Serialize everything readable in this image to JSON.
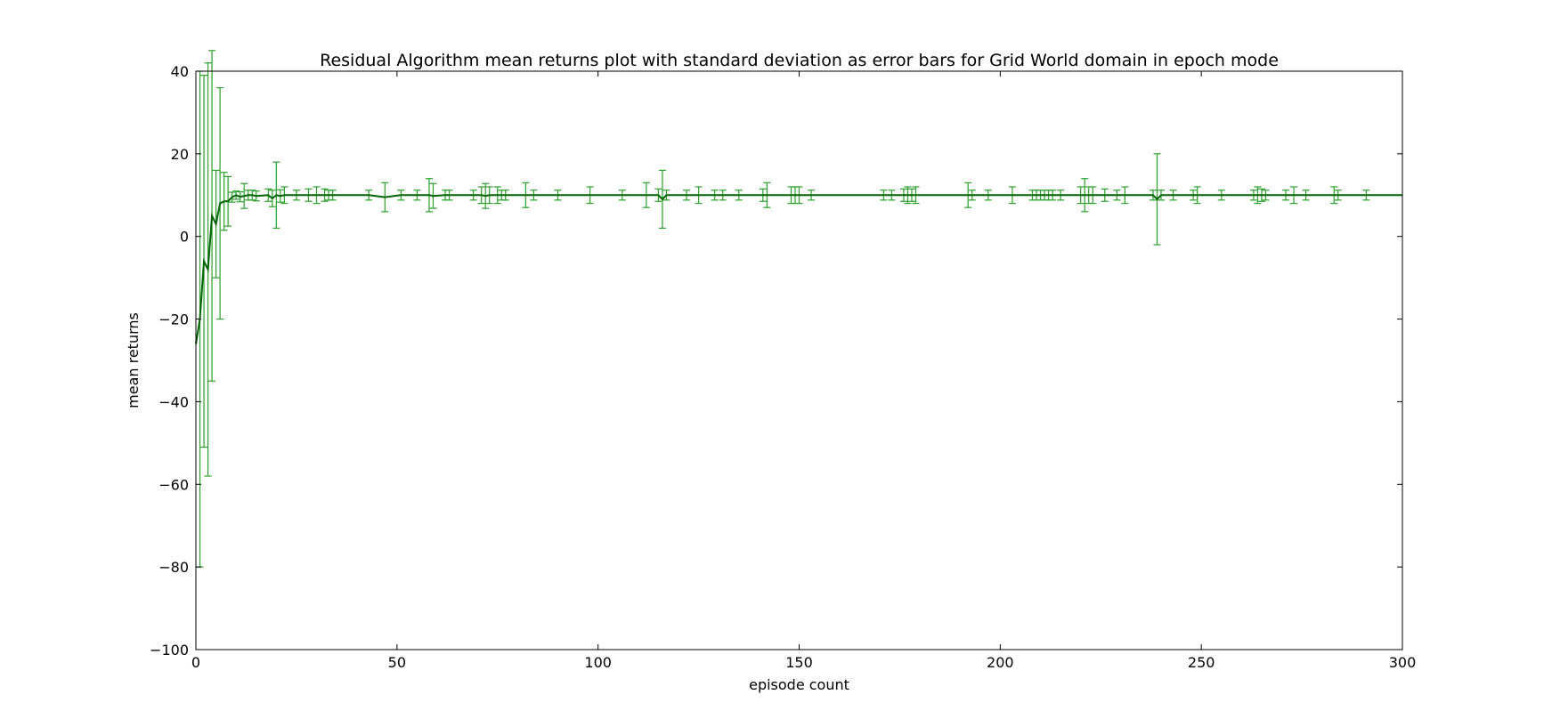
{
  "chart_data": {
    "type": "line",
    "title": "Residual Algorithm mean returns plot with standard deviation as error bars for Grid World domain in epoch mode",
    "xlabel": "episode count",
    "ylabel": "mean returns",
    "xlim": [
      0,
      300
    ],
    "ylim": [
      -100,
      40
    ],
    "xticks": [
      0,
      50,
      100,
      150,
      200,
      250,
      300
    ],
    "yticks": [
      40,
      20,
      0,
      -20,
      -40,
      -60,
      -80,
      -100
    ],
    "ytick_labels": [
      "40",
      "20",
      "0",
      "−20",
      "−40",
      "−60",
      "−80",
      "−100"
    ],
    "grid": false,
    "colors": {
      "line": "#006400",
      "errorbar": "#2ca02c"
    },
    "series": [
      {
        "name": "",
        "x": [
          0,
          1,
          2,
          3,
          4,
          5,
          6,
          7,
          8,
          9,
          10,
          11,
          12,
          13,
          14,
          15,
          18,
          19,
          20,
          21,
          22,
          25,
          28,
          30,
          32,
          33,
          34,
          43,
          47,
          51,
          55,
          58,
          59,
          62,
          63,
          69,
          71,
          72,
          73,
          75,
          76,
          77,
          82,
          84,
          90,
          98,
          106,
          112,
          115,
          116,
          117,
          122,
          125,
          129,
          131,
          135,
          141,
          142,
          148,
          149,
          150,
          153,
          171,
          173,
          176,
          177,
          178,
          179,
          192,
          193,
          197,
          203,
          208,
          209,
          210,
          211,
          212,
          213,
          215,
          220,
          221,
          222,
          223,
          226,
          229,
          231,
          238,
          239,
          240,
          243,
          248,
          249,
          255,
          263,
          264,
          265,
          266,
          271,
          273,
          276,
          283,
          284,
          291,
          300
        ],
        "y": [
          -26,
          -20,
          -6,
          -8,
          5,
          3,
          8,
          8.5,
          8.5,
          9.5,
          10,
          9.6,
          9.8,
          10,
          10,
          9.8,
          10,
          9.2,
          10,
          9.8,
          10,
          10,
          10,
          10,
          10,
          10,
          10,
          10,
          9.5,
          10,
          10,
          10,
          9.8,
          10,
          10,
          10,
          10,
          9.8,
          10,
          10,
          10,
          10,
          10,
          10,
          10,
          10,
          10,
          10,
          10,
          9.0,
          10,
          10,
          10,
          10,
          10,
          10,
          10,
          10,
          10,
          10,
          10,
          10,
          10,
          10,
          10,
          10,
          10,
          10,
          10,
          10,
          10,
          10,
          10,
          10,
          10,
          10,
          10,
          10,
          10,
          10,
          10,
          10,
          10,
          10,
          10,
          10,
          10,
          9.0,
          10,
          10,
          10,
          10,
          10,
          10,
          10,
          10,
          10,
          10,
          10,
          10,
          10,
          10,
          10,
          10
        ],
        "yerr": [
          0,
          60,
          45,
          50,
          40,
          13,
          28,
          7,
          6,
          1.2,
          1,
          1.2,
          3,
          1.2,
          1.2,
          1.2,
          1.5,
          2,
          8,
          1.5,
          2,
          1.2,
          1.5,
          2,
          1.5,
          1.2,
          1.2,
          1.2,
          3.5,
          1.2,
          1.2,
          4,
          3,
          1.2,
          1.2,
          1.2,
          2,
          3,
          2,
          2,
          1.2,
          1.2,
          3,
          1.2,
          1.2,
          2,
          1.2,
          3,
          1.5,
          7,
          1.2,
          1.2,
          2,
          1.2,
          1.2,
          1.2,
          1.5,
          3,
          2,
          2,
          2,
          1.2,
          1.2,
          1.2,
          1.5,
          2,
          1.5,
          2,
          3,
          1.2,
          1.2,
          2,
          1.2,
          1.2,
          1.2,
          1.2,
          1.2,
          1.2,
          1.2,
          2,
          4,
          2,
          2,
          1.5,
          1.2,
          2,
          1.2,
          11,
          1.2,
          1.2,
          1.2,
          2,
          1.2,
          1.2,
          2,
          1.5,
          1.2,
          1.2,
          2,
          1.2,
          2,
          1.2,
          1.2,
          0
        ]
      }
    ]
  }
}
